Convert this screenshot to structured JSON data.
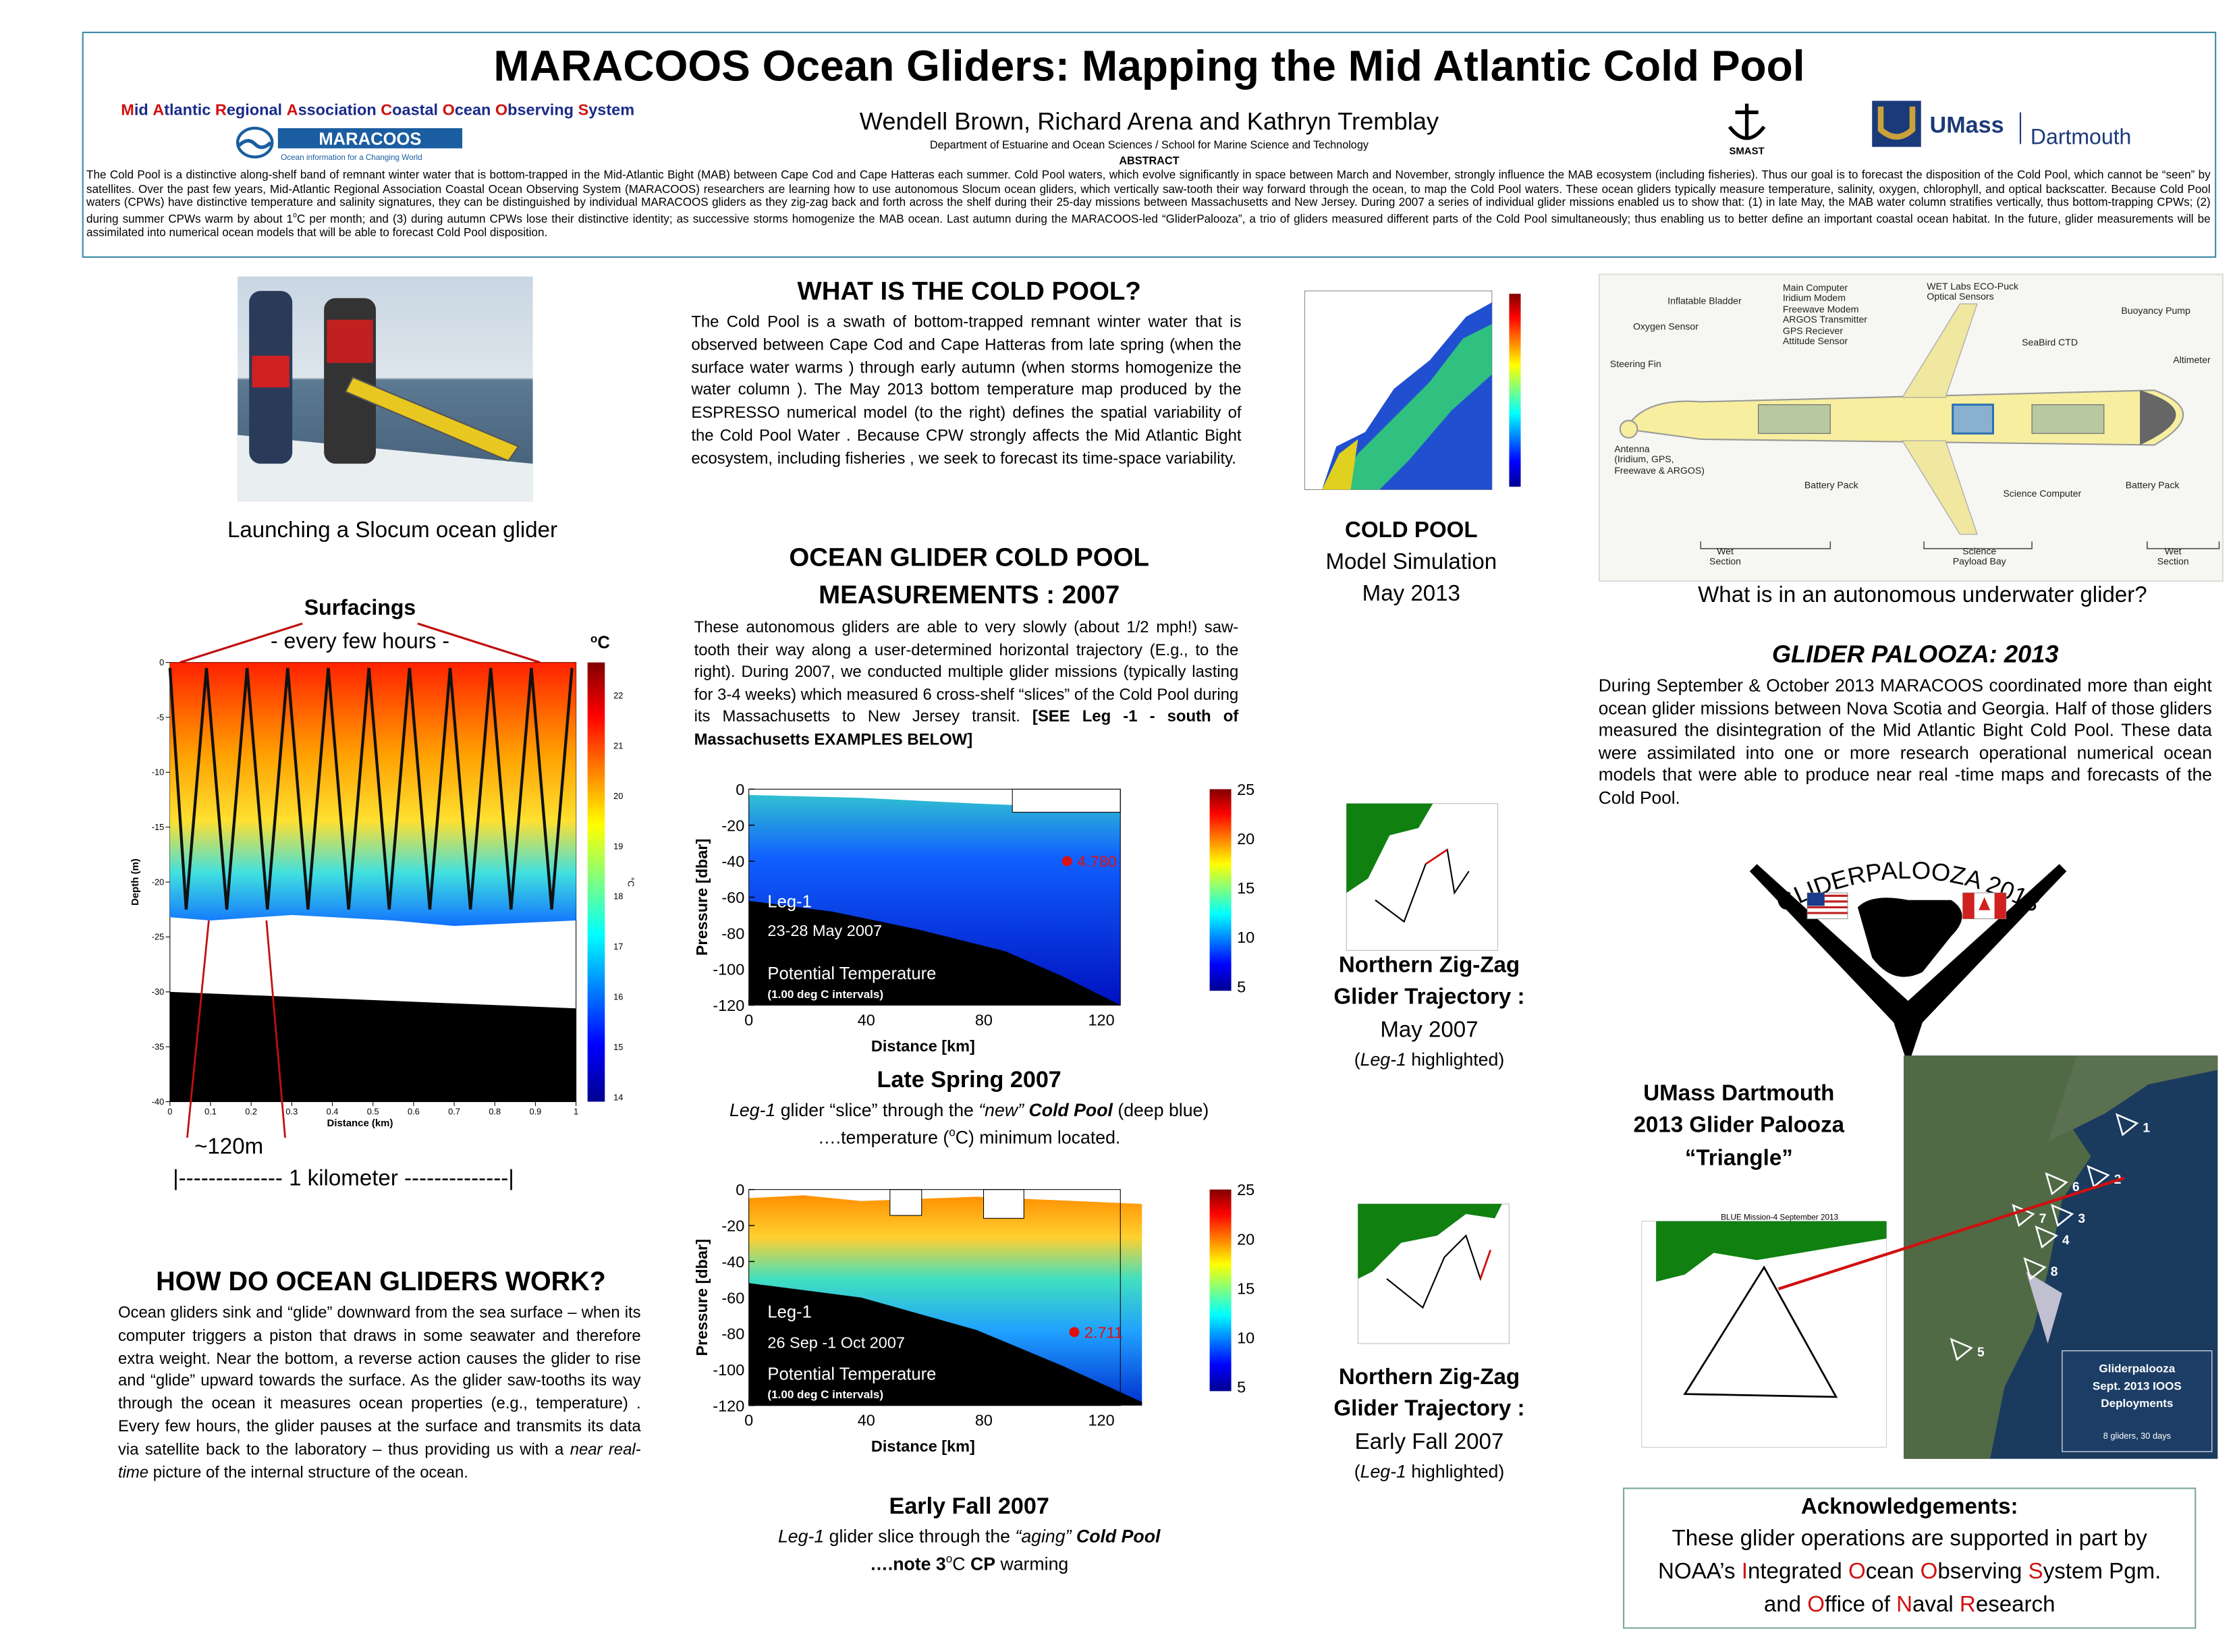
{
  "header": {
    "title": "MARACOOS Ocean Gliders: Mapping the Mid Atlantic Cold Pool",
    "organization_words": [
      "Mid",
      "Atlantic",
      "Regional",
      "Association",
      "Coastal",
      "Ocean",
      "Observing",
      "System"
    ],
    "logo_name": "MARACOOS",
    "logo_tagline": "Ocean information for a Changing World",
    "authors": "Wendell Brown, Richard Arena and Kathryn Tremblay",
    "department": "Department of Estuarine and Ocean Sciences / School for Marine Science and Technology",
    "smast": "SMAST",
    "umass": "UMass",
    "dartmouth": "Dartmouth"
  },
  "abstract": {
    "heading": "ABSTRACT",
    "text": [
      "The Cold Pool is a distinctive along-shelf band of remnant winter water that is bottom-trapped in the Mid-Atlantic Bight (MAB) between Cape Cod and Cape Hatteras each summer. Cold Pool waters, which evolve significantly in space between March and November, strongly influence the MAB ecosystem (including fisheries). Thus our goal is to forecast the disposition of the Cold Pool, which cannot be “seen” by satellites. Over the past few years, Mid-Atlantic Regional Association Coastal Ocean Observing System (MARACOOS) researchers are learning how to use autonomous Slocum ocean gliders, which vertically saw-tooth their way forward through the ocean, to map the Cold Pool waters. These ocean gliders typically measure temperature, salinity, oxygen, chlorophyll, and optical backscatter. Because Cold Pool waters (CPWs) have distinctive temperature and salinity signatures, they can be distinguished by individual MARACOOS gliders as they zig-zag back and forth across the shelf during their 25-day missions between Massachusetts and New Jersey. During 2007 a series of individual glider missions enabled us to show that: (1) in late May, the MAB water column stratifies vertically, thus bottom-trapping CPWs; (2) during summer CPWs warm by about 1",
      "o",
      "C per month; and (3) during autumn CPWs lose their distinctive identity; as successive storms homogenize the MAB ocean. Last autumn during the MARACOOS-led “GliderPalooza”, a trio of gliders measured different parts of the Cold Pool simultaneously; thus enabling us to better define an important coastal ocean habitat. In the future, glider measurements will be assimilated into numerical ocean models that will be able to forecast Cold Pool disposition."
    ]
  },
  "photo": {
    "caption": "Launching a Slocum  ocean glider"
  },
  "profile": {
    "surfacings": "Surfacings",
    "every_few_hours": "- every few hours -",
    "unit": [
      "o",
      "C"
    ],
    "y_label": "Depth (m)",
    "yticks": [
      0,
      -5,
      -10,
      -15,
      -20,
      -25,
      -30,
      -35,
      -40
    ],
    "x_label": "Distance (km)",
    "xticks": [
      0,
      0.1,
      0.2,
      0.3,
      0.4,
      0.5,
      0.6,
      0.7,
      0.8,
      0.9,
      1
    ],
    "colorbar_label": "°C",
    "colorbar_ticks": [
      22,
      21,
      20,
      19,
      18,
      17,
      16,
      15,
      14
    ],
    "depth_note": "~120m",
    "scale_note": "|-------------- 1 kilometer  --------------|"
  },
  "how_gliders_work": {
    "heading": "HOW DO OCEAN GLIDERS WORK?",
    "text": [
      "Ocean gliders sink and “glide” downward from the sea surface – when its computer triggers a piston that draws in some seawater and therefore extra weight.  Near the bottom, a reverse action causes the glider to rise and “glide” upward towards the surface. As the glider saw-tooths its way through the ocean it measures ocean properties (e.g., temperature) . Every few hours, the glider pauses at the surface and transmits its data via satellite back to the laboratory – thus providing  us with a ",
      "near real-time",
      " picture of the internal structure of the ocean."
    ]
  },
  "cold_pool": {
    "heading": "WHAT IS THE COLD POOL?",
    "text": "The Cold Pool is a swath of  bottom-trapped remnant winter water that is observed between Cape Cod and Cape Hatteras  from late spring (when  the surface water warms ) through  early autumn  (when storms homogenize the water column ).  The May 2013 bottom  temperature map   produced  by the  ESPRESSO numerical   model  (to  the  right) defines  the  spatial variability of the Cold Pool Water .  Because CPW strongly affects the  Mid Atlantic Bight ecosystem,  including fisheries , we  seek  to forecast  its time-space variability."
  },
  "model_map": {
    "caption": [
      "COLD POOL",
      "Model Simulation",
      "May 2013"
    ]
  },
  "measurements": {
    "heading": [
      "OCEAN GLIDER  COLD POOL",
      "MEASUREMENTS : 2007"
    ],
    "text": [
      "These autonomous gliders are able to very slowly (about 1/2 mph!) saw-tooth their way along a user-determined horizontal trajectory (E.g.,  to  the  right).  During  2007,  we  conducted  multiple  glider missions  (typically lasting for 3-4 weeks) which measured 6 cross-shelf “slices” of the Cold Pool during its Massachusetts to New Jersey transit.     ",
      "[SEE Leg -1 - south of  Massachusetts EXAMPLES BELOW]"
    ]
  },
  "section_spring": {
    "y_label": "Pressure [dbar]",
    "yticks": [
      0,
      -20,
      -40,
      -60,
      -80,
      -100,
      -120
    ],
    "x_label": "Distance [km]",
    "xticks": [
      0,
      40,
      80,
      120
    ],
    "colorbar_ticks": [
      25,
      20,
      15,
      10,
      5
    ],
    "leg": "Leg-1",
    "dates": "23-28 May 2007",
    "quantity": "Potential Temperature",
    "intervals": "(1.00 deg C intervals)",
    "minimum": "4.780",
    "title": "Late Spring 2007",
    "caption_line1": [
      "Leg-1",
      " glider  “slice” through the  ",
      "“new”",
      " ",
      "Cold Pool",
      " (deep blue)"
    ],
    "caption_line2": [
      "….temperature (",
      "o",
      "C) minimum located."
    ]
  },
  "section_fall": {
    "y_label": "Pressure [dbar]",
    "yticks": [
      0,
      -20,
      -40,
      -60,
      -80,
      -100,
      -120
    ],
    "x_label": "Distance [km]",
    "xticks": [
      0,
      40,
      80,
      120
    ],
    "colorbar_ticks": [
      25,
      20,
      15,
      10,
      5
    ],
    "leg": "Leg-1",
    "dates": "26 Sep -1 Oct 2007",
    "quantity": "Potential Temperature",
    "intervals": "(1.00 deg C intervals)",
    "minimum": "2.711",
    "title": "Early Fall 2007",
    "caption_line1": [
      "Leg-1",
      "  glider slice  through  the  ",
      "“aging”",
      " ",
      "Cold Pool"
    ],
    "caption_line2": [
      "….note 3",
      "o",
      "C ",
      "CP",
      " warming"
    ]
  },
  "trajectory_spring": {
    "caption": [
      "Northern Zig-Zag",
      "Glider  Trajectory :",
      "May 2007"
    ],
    "note": [
      "(",
      "Leg-1",
      " highlighted)"
    ]
  },
  "trajectory_fall": {
    "caption": [
      "Northern Zig-Zag",
      "Glider  Trajectory :",
      "Early Fall 2007"
    ],
    "note": [
      "(",
      "Leg-1",
      " highlighted)"
    ]
  },
  "glider_diagram": {
    "labels": [
      "Inflatable Bladder",
      "Oxygen Sensor",
      "Steering Fin",
      "Main Computer\nIridium Modem\nFreewave Modem\nARGOS Transmitter\nGPS Reciever\nAttitude Sensor",
      "WET Labs ECO-Puck\nOptical Sensors",
      "Buoyancy Pump",
      "SeaBird CTD",
      "Altimeter",
      "Antenna\n(Iridium, GPS,\nFreewave & ARGOS)",
      "Battery Pack",
      "Science Computer",
      "Battery Pack",
      "Wet\nSection",
      "Science\nPayload Bay",
      "Wet\nSection"
    ],
    "caption": "What is in an autonomous underwater glider?"
  },
  "glider_palooza": {
    "heading": "GLIDER PALOOZA: 2013",
    "text": "During September & October 2013 MARACOOS coordinated more than eight ocean glider  missions between Nova Scotia and Georgia. Half of those gliders measured the disintegration of the Mid Atlantic Bight  Cold Pool. These data were assimilated into one or more research operational numerical ocean  models that were able to produce near real -time maps and forecasts  of the Cold Pool.",
    "logo": "GLIDERPALOOZA 2013"
  },
  "triangle": {
    "caption": [
      "UMass Dartmouth",
      "2013 Glider Palooza",
      "“Triangle”"
    ],
    "mission": "BLUE Mission-4   September 2013",
    "markers": [
      "1",
      "2",
      "3",
      "4",
      "5",
      "6",
      "7",
      "8"
    ],
    "legend": [
      "Gliderpalooza",
      "Sept. 2013 IOOS",
      "Deployments"
    ],
    "legend_note": "8 gliders, 30 days"
  },
  "acknowledgements": {
    "heading": "Acknowledgements:",
    "line1": "These glider operations are supported  in part by",
    "line2": [
      "NOAA’s",
      "Integrated",
      "Ocean",
      "Observing",
      "System",
      "Pgm."
    ],
    "line3": [
      "and",
      "Office",
      "of",
      "Naval",
      "Research"
    ]
  }
}
